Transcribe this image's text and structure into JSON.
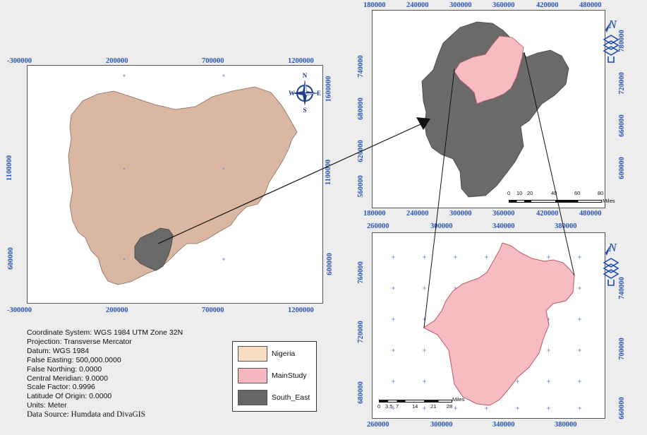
{
  "main_map": {
    "top_ticks": [
      "-300000",
      "200000",
      "700000",
      "1200000"
    ],
    "bottom_ticks": [
      "-300000",
      "200000",
      "700000",
      "1200000"
    ],
    "left_ticks": [
      "1100000",
      "600000"
    ],
    "right_ticks": [
      "1600000",
      "1100000",
      "600000"
    ],
    "compass": {
      "n": "N",
      "s": "S",
      "e": "E",
      "w": "W"
    }
  },
  "inset_upper": {
    "top_ticks": [
      "180000",
      "240000",
      "300000",
      "360000",
      "420000",
      "480000"
    ],
    "bottom_ticks": [
      "180000",
      "240000",
      "300000",
      "360000",
      "420000",
      "480000"
    ],
    "left_ticks": [
      "740000",
      "680000",
      "620000",
      "560000"
    ],
    "right_ticks": [
      "780000",
      "720000",
      "660000",
      "600000"
    ],
    "north": "N",
    "scalebar": [
      "0",
      "10",
      "20",
      "40",
      "60",
      "80",
      "Miles"
    ]
  },
  "inset_lower": {
    "top_ticks": [
      "260000",
      "300000",
      "340000",
      "380000"
    ],
    "bottom_ticks": [
      "260000",
      "300000",
      "340000",
      "380000"
    ],
    "left_ticks": [
      "760000",
      "720000",
      "680000"
    ],
    "right_ticks": [
      "740000",
      "700000",
      "660000"
    ],
    "north": "N",
    "scalebar": [
      "0",
      "3.5",
      "7",
      "14",
      "21",
      "28",
      "Miles"
    ]
  },
  "coordinate_info": [
    "Coordinate System: WGS 1984 UTM Zone 32N",
    "Projection: Transverse Mercator",
    "Datum: WGS 1984",
    "False Easting: 500,000.0000",
    "False Northing: 0.0000",
    "Central Meridian: 9.0000",
    "Scale Factor: 0.9996",
    "Latitude Of Origin: 0.0000",
    "Units: Meter"
  ],
  "data_source": "Data Source: Humdata and DivaGIS",
  "legend": [
    {
      "label": "Nigeria",
      "color": "#f6dcc0"
    },
    {
      "label": "MainStudy",
      "color": "#f7b7c0"
    },
    {
      "label": "South_East",
      "color": "#666666"
    }
  ],
  "colors": {
    "nigeria_fill": "#d9b7a2",
    "south_east_fill": "#6a6a6a",
    "main_study_fill": "#f7bcc2",
    "tick_text": "#2b56b8",
    "grid_cross": "#6b8fd0"
  }
}
